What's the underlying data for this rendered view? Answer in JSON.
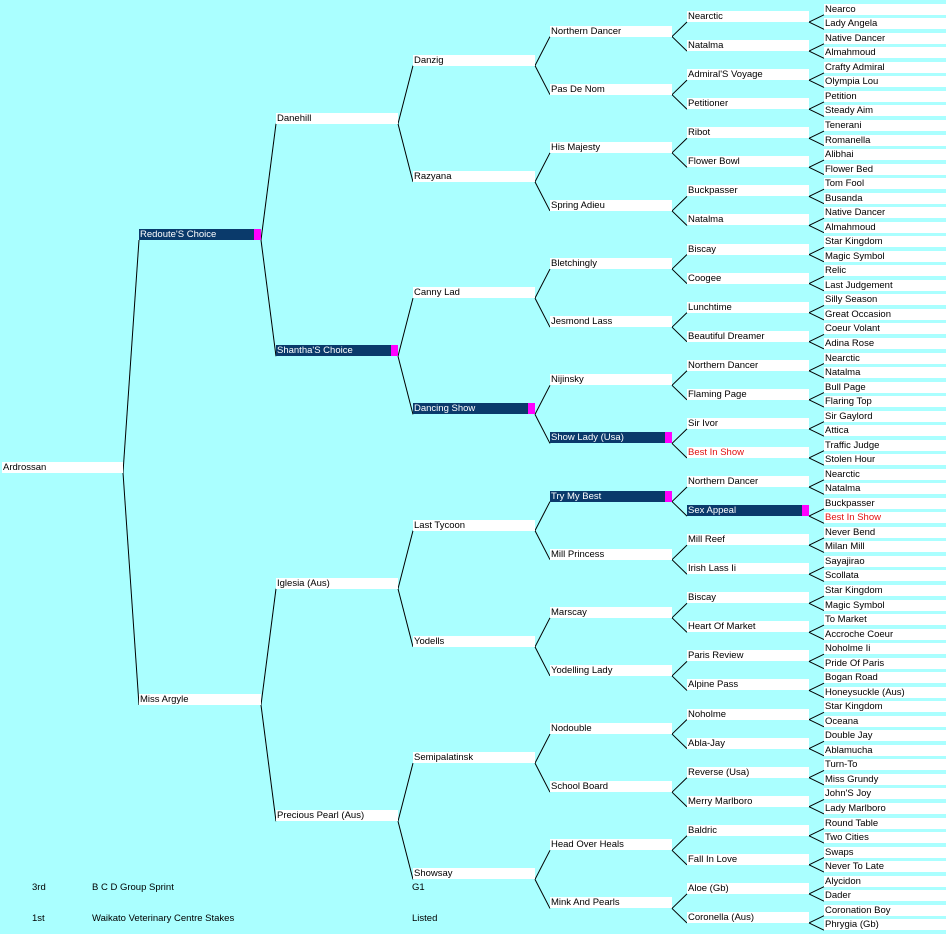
{
  "pedigree": {
    "name": "Ardrossan",
    "sire": {
      "name": "Redoute'S Choice",
      "highlight": true,
      "sire": {
        "name": "Danehill",
        "sire": {
          "name": "Danzig",
          "sire": {
            "name": "Northern Dancer",
            "sire": {
              "name": "Nearctic",
              "sire": {
                "name": "Nearco"
              },
              "dam": {
                "name": "Lady Angela"
              }
            },
            "dam": {
              "name": "Natalma",
              "sire": {
                "name": "Native Dancer"
              },
              "dam": {
                "name": "Almahmoud"
              }
            }
          },
          "dam": {
            "name": "Pas De Nom",
            "sire": {
              "name": "Admiral'S Voyage",
              "sire": {
                "name": "Crafty Admiral"
              },
              "dam": {
                "name": "Olympia Lou"
              }
            },
            "dam": {
              "name": "Petitioner",
              "sire": {
                "name": "Petition"
              },
              "dam": {
                "name": "Steady Aim"
              }
            }
          }
        },
        "dam": {
          "name": "Razyana",
          "sire": {
            "name": "His Majesty",
            "sire": {
              "name": "Ribot",
              "sire": {
                "name": "Tenerani"
              },
              "dam": {
                "name": "Romanella"
              }
            },
            "dam": {
              "name": "Flower Bowl",
              "sire": {
                "name": "Alibhai"
              },
              "dam": {
                "name": "Flower Bed"
              }
            }
          },
          "dam": {
            "name": "Spring Adieu",
            "sire": {
              "name": "Buckpasser",
              "sire": {
                "name": "Tom Fool"
              },
              "dam": {
                "name": "Busanda"
              }
            },
            "dam": {
              "name": "Natalma",
              "sire": {
                "name": "Native Dancer"
              },
              "dam": {
                "name": "Almahmoud"
              }
            }
          }
        }
      },
      "dam": {
        "name": "Shantha'S Choice",
        "highlight": true,
        "sire": {
          "name": "Canny Lad",
          "sire": {
            "name": "Bletchingly",
            "sire": {
              "name": "Biscay",
              "sire": {
                "name": "Star Kingdom"
              },
              "dam": {
                "name": "Magic Symbol"
              }
            },
            "dam": {
              "name": "Coogee",
              "sire": {
                "name": "Relic"
              },
              "dam": {
                "name": "Last Judgement"
              }
            }
          },
          "dam": {
            "name": "Jesmond Lass",
            "sire": {
              "name": "Lunchtime",
              "sire": {
                "name": "Silly Season"
              },
              "dam": {
                "name": "Great Occasion"
              }
            },
            "dam": {
              "name": "Beautiful Dreamer",
              "sire": {
                "name": "Coeur Volant"
              },
              "dam": {
                "name": "Adina Rose"
              }
            }
          }
        },
        "dam": {
          "name": "Dancing Show",
          "highlight": true,
          "sire": {
            "name": "Nijinsky",
            "sire": {
              "name": "Northern Dancer",
              "sire": {
                "name": "Nearctic"
              },
              "dam": {
                "name": "Natalma"
              }
            },
            "dam": {
              "name": "Flaming Page",
              "sire": {
                "name": "Bull Page"
              },
              "dam": {
                "name": "Flaring Top"
              }
            }
          },
          "dam": {
            "name": "Show Lady (Usa)",
            "highlight": true,
            "sire": {
              "name": "Sir Ivor",
              "sire": {
                "name": "Sir Gaylord"
              },
              "dam": {
                "name": "Attica"
              }
            },
            "dam": {
              "name": "Best In Show",
              "red": true,
              "sire": {
                "name": "Traffic Judge"
              },
              "dam": {
                "name": "Stolen Hour"
              }
            }
          }
        }
      }
    },
    "dam": {
      "name": "Miss Argyle",
      "sire": {
        "name": "Iglesia (Aus)",
        "sire": {
          "name": "Last Tycoon",
          "sire": {
            "name": "Try My Best",
            "highlight": true,
            "sire": {
              "name": "Northern Dancer",
              "sire": {
                "name": "Nearctic"
              },
              "dam": {
                "name": "Natalma"
              }
            },
            "dam": {
              "name": "Sex Appeal",
              "highlight": true,
              "sire": {
                "name": "Buckpasser"
              },
              "dam": {
                "name": "Best In Show",
                "red": true
              }
            }
          },
          "dam": {
            "name": "Mill Princess",
            "sire": {
              "name": "Mill Reef",
              "sire": {
                "name": "Never Bend"
              },
              "dam": {
                "name": "Milan Mill"
              }
            },
            "dam": {
              "name": "Irish Lass Ii",
              "sire": {
                "name": "Sayajirao"
              },
              "dam": {
                "name": "Scollata"
              }
            }
          }
        },
        "dam": {
          "name": "Yodells",
          "sire": {
            "name": "Marscay",
            "sire": {
              "name": "Biscay",
              "sire": {
                "name": "Star Kingdom"
              },
              "dam": {
                "name": "Magic Symbol"
              }
            },
            "dam": {
              "name": "Heart Of Market",
              "sire": {
                "name": "To Market"
              },
              "dam": {
                "name": "Accroche Coeur"
              }
            }
          },
          "dam": {
            "name": "Yodelling Lady",
            "sire": {
              "name": "Paris Review",
              "sire": {
                "name": "Noholme Ii"
              },
              "dam": {
                "name": "Pride Of Paris"
              }
            },
            "dam": {
              "name": "Alpine Pass",
              "sire": {
                "name": "Bogan Road"
              },
              "dam": {
                "name": "Honeysuckle (Aus)"
              }
            }
          }
        }
      },
      "dam": {
        "name": "Precious Pearl (Aus)",
        "sire": {
          "name": "Semipalatinsk",
          "sire": {
            "name": "Nodouble",
            "sire": {
              "name": "Noholme",
              "sire": {
                "name": "Star Kingdom"
              },
              "dam": {
                "name": "Oceana"
              }
            },
            "dam": {
              "name": "Abla-Jay",
              "sire": {
                "name": "Double Jay"
              },
              "dam": {
                "name": "Ablamucha"
              }
            }
          },
          "dam": {
            "name": "School Board",
            "sire": {
              "name": "Reverse (Usa)",
              "sire": {
                "name": "Turn-To"
              },
              "dam": {
                "name": "Miss Grundy"
              }
            },
            "dam": {
              "name": "Merry Marlboro",
              "sire": {
                "name": "John'S Joy"
              },
              "dam": {
                "name": "Lady Marlboro"
              }
            }
          }
        },
        "dam": {
          "name": "Showsay",
          "sire": {
            "name": "Head Over Heals",
            "sire": {
              "name": "Baldric",
              "sire": {
                "name": "Round Table"
              },
              "dam": {
                "name": "Two Cities"
              }
            },
            "dam": {
              "name": "Fall In Love",
              "sire": {
                "name": "Swaps"
              },
              "dam": {
                "name": "Never To Late"
              }
            }
          },
          "dam": {
            "name": "Mink And Pearls",
            "sire": {
              "name": "Aloe (Gb)",
              "sire": {
                "name": "Alycidon"
              },
              "dam": {
                "name": "Dader"
              }
            },
            "dam": {
              "name": "Coronella (Aus)",
              "sire": {
                "name": "Coronation Boy"
              },
              "dam": {
                "name": "Phrygia (Gb)"
              }
            }
          }
        }
      }
    }
  },
  "races": [
    {
      "place": "3rd",
      "race": "B C D Group Sprint",
      "grade": "G1"
    },
    {
      "place": "1st",
      "race": "Waikato Veterinary Centre Stakes",
      "grade": "Listed"
    }
  ],
  "colors": {
    "background": "#aaffff",
    "node": "#ffffff",
    "highlight": "#0a3a6b",
    "marker": "#ff00ff",
    "red_text": "#e01010"
  }
}
